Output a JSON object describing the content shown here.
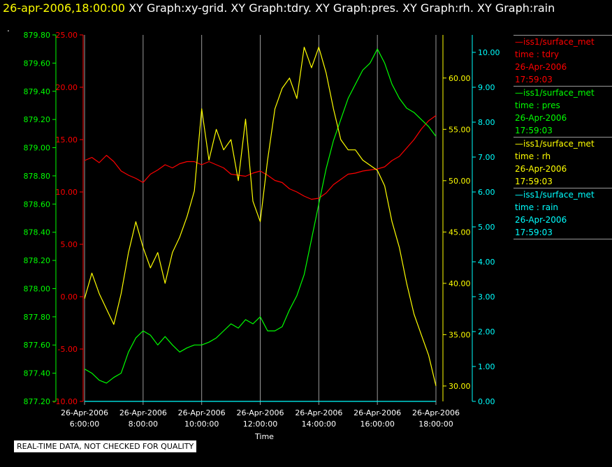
{
  "header": {
    "time": "26-apr-2006,18:00:00",
    "graphs": "XY Graph:xy-grid.  XY Graph:tdry.  XY Graph:pres.  XY Graph:rh.  XY Graph:rain",
    "dot": "."
  },
  "footer": {
    "quality": "REAL-TIME DATA, NOT CHECKED FOR QUALITY"
  },
  "legend": [
    {
      "name": "—iss1/surface_met",
      "var": "time : tdry",
      "date": "26-Apr-2006",
      "time": "17:59:03",
      "color": "#ff0000"
    },
    {
      "name": "—iss1/surface_met",
      "var": "time : pres",
      "date": "26-Apr-2006",
      "time": "17:59:03",
      "color": "#00ff00"
    },
    {
      "name": "—iss1/surface_met",
      "var": "time : rh",
      "date": "26-Apr-2006",
      "time": "17:59:03",
      "color": "#ffff00"
    },
    {
      "name": "—iss1/surface_met",
      "var": "time : rain",
      "date": "26-Apr-2006",
      "time": "17:59:03",
      "color": "#00ffff"
    }
  ],
  "chart_data": {
    "type": "line",
    "xlabel": "Time",
    "xlim": [
      6,
      18
    ],
    "x_ticks": [
      {
        "value": 6,
        "date": "26-Apr-2006",
        "time": "6:00:00"
      },
      {
        "value": 8,
        "date": "26-Apr-2006",
        "time": "8:00:00"
      },
      {
        "value": 10,
        "date": "26-Apr-2006",
        "time": "10:00:00"
      },
      {
        "value": 12,
        "date": "26-Apr-2006",
        "time": "12:00:00"
      },
      {
        "value": 14,
        "date": "26-Apr-2006",
        "time": "14:00:00"
      },
      {
        "value": 16,
        "date": "26-Apr-2006",
        "time": "16:00:00"
      },
      {
        "value": 18,
        "date": "26-Apr-2006",
        "time": "18:00:00"
      }
    ],
    "grid_x": true,
    "axes": [
      {
        "id": "pres",
        "color": "#00ff00",
        "min": 877.2,
        "max": 879.8,
        "ticks": [
          "877.20",
          "877.40",
          "877.60",
          "877.80",
          "878.00",
          "878.20",
          "878.40",
          "878.60",
          "878.80",
          "879.00",
          "879.20",
          "879.40",
          "879.60",
          "879.80"
        ]
      },
      {
        "id": "tdry",
        "color": "#ff0000",
        "min": -10,
        "max": 25,
        "ticks": [
          "-10.00",
          "-5.00",
          "0.00",
          "5.00",
          "10.00",
          "15.00",
          "20.00",
          "25.00"
        ]
      },
      {
        "id": "rh",
        "color": "#ffff00",
        "min": 28.5,
        "max": 64.2,
        "ticks": [
          "30.00",
          "35.00",
          "40.00",
          "45.00",
          "50.00",
          "55.00",
          "60.00"
        ]
      },
      {
        "id": "rain",
        "color": "#00ffff",
        "min": 0,
        "max": 10.5,
        "ticks": [
          "0.00",
          "1.00",
          "2.00",
          "3.00",
          "4.00",
          "5.00",
          "6.00",
          "7.00",
          "8.00",
          "9.00",
          "10.00"
        ]
      }
    ],
    "series": [
      {
        "name": "tdry",
        "axis": "tdry",
        "color": "#ff0000",
        "x": [
          6.0,
          6.25,
          6.5,
          6.75,
          7.0,
          7.25,
          7.5,
          7.75,
          8.0,
          8.25,
          8.5,
          8.75,
          9.0,
          9.25,
          9.5,
          9.75,
          10.0,
          10.25,
          10.5,
          10.75,
          11.0,
          11.25,
          11.5,
          11.75,
          12.0,
          12.25,
          12.5,
          12.75,
          13.0,
          13.25,
          13.5,
          13.75,
          14.0,
          14.25,
          14.5,
          14.75,
          15.0,
          15.25,
          15.5,
          15.75,
          16.0,
          16.25,
          16.5,
          16.75,
          17.0,
          17.25,
          17.5,
          17.75,
          18.0
        ],
        "y": [
          13.0,
          13.3,
          12.8,
          13.5,
          12.9,
          12.0,
          11.6,
          11.3,
          10.9,
          11.7,
          12.1,
          12.6,
          12.3,
          12.7,
          12.9,
          12.9,
          12.6,
          12.9,
          12.6,
          12.3,
          11.7,
          11.6,
          11.5,
          11.8,
          12.0,
          11.6,
          11.1,
          10.9,
          10.3,
          10.0,
          9.6,
          9.3,
          9.4,
          9.9,
          10.7,
          11.2,
          11.7,
          11.8,
          12.0,
          12.1,
          12.2,
          12.4,
          13.0,
          13.4,
          14.2,
          15.0,
          16.0,
          16.8,
          17.3
        ]
      },
      {
        "name": "pres",
        "axis": "pres",
        "color": "#00ff00",
        "x": [
          6.0,
          6.25,
          6.5,
          6.75,
          7.0,
          7.25,
          7.5,
          7.75,
          8.0,
          8.25,
          8.5,
          8.75,
          9.0,
          9.25,
          9.5,
          9.75,
          10.0,
          10.25,
          10.5,
          10.75,
          11.0,
          11.25,
          11.5,
          11.75,
          12.0,
          12.25,
          12.5,
          12.75,
          13.0,
          13.25,
          13.5,
          13.75,
          14.0,
          14.25,
          14.5,
          14.75,
          15.0,
          15.25,
          15.5,
          15.75,
          16.0,
          16.25,
          16.5,
          16.75,
          17.0,
          17.25,
          17.5,
          17.75,
          18.0
        ],
        "y": [
          877.43,
          877.4,
          877.35,
          877.33,
          877.37,
          877.4,
          877.55,
          877.65,
          877.7,
          877.67,
          877.6,
          877.66,
          877.6,
          877.55,
          877.58,
          877.6,
          877.6,
          877.62,
          877.65,
          877.7,
          877.75,
          877.72,
          877.78,
          877.75,
          877.8,
          877.7,
          877.7,
          877.73,
          877.85,
          877.95,
          878.1,
          878.35,
          878.6,
          878.85,
          879.05,
          879.2,
          879.35,
          879.45,
          879.55,
          879.6,
          879.7,
          879.6,
          879.45,
          879.35,
          879.28,
          879.25,
          879.2,
          879.15,
          879.08
        ]
      },
      {
        "name": "rh",
        "axis": "rh",
        "color": "#ffff00",
        "x": [
          6.0,
          6.25,
          6.5,
          6.75,
          7.0,
          7.25,
          7.5,
          7.75,
          8.0,
          8.25,
          8.5,
          8.75,
          9.0,
          9.25,
          9.5,
          9.75,
          10.0,
          10.25,
          10.5,
          10.75,
          11.0,
          11.25,
          11.5,
          11.75,
          12.0,
          12.25,
          12.5,
          12.75,
          13.0,
          13.25,
          13.5,
          13.75,
          14.0,
          14.25,
          14.5,
          14.75,
          15.0,
          15.25,
          15.5,
          15.75,
          16.0,
          16.25,
          16.5,
          16.75,
          17.0,
          17.25,
          17.5,
          17.75,
          18.0
        ],
        "y": [
          38.5,
          41.0,
          39.0,
          37.5,
          36.0,
          39.0,
          43.0,
          46.0,
          43.5,
          41.5,
          43.0,
          40.0,
          43.0,
          44.5,
          46.5,
          49.0,
          57.0,
          52.0,
          55.0,
          53.0,
          54.0,
          50.0,
          56.0,
          48.0,
          46.0,
          52.0,
          57.0,
          59.0,
          60.0,
          58.0,
          63.0,
          61.0,
          63.0,
          60.5,
          57.0,
          54.0,
          53.0,
          53.0,
          52.0,
          51.5,
          51.0,
          49.5,
          46.0,
          43.5,
          40.0,
          37.0,
          35.0,
          33.0,
          30.0
        ]
      },
      {
        "name": "rain",
        "axis": "rain",
        "color": "#00ffff",
        "x": [
          6.0,
          18.0
        ],
        "y": [
          0.0,
          0.0
        ]
      }
    ]
  }
}
